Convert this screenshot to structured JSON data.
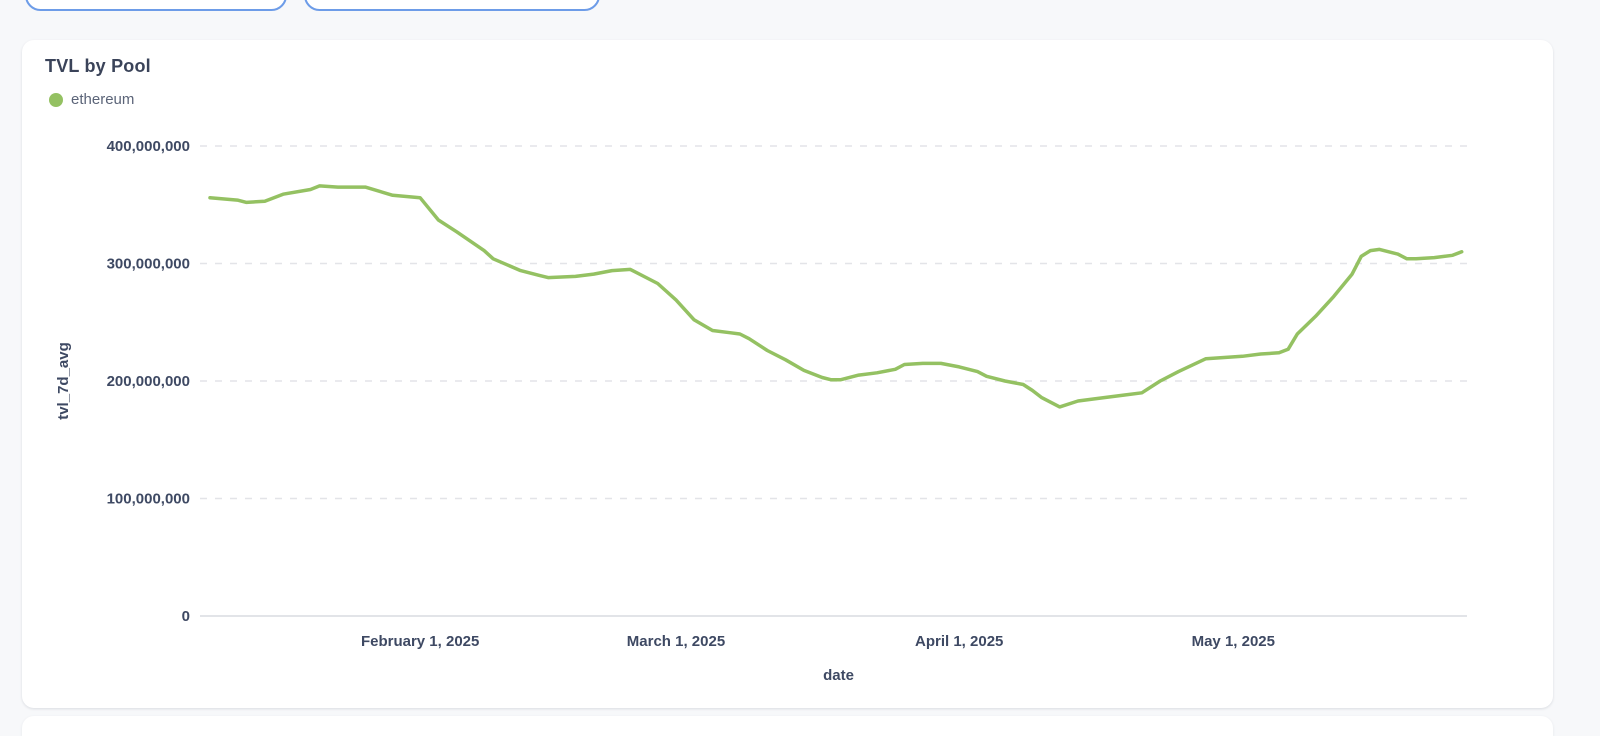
{
  "theme": {
    "background": "#f7f8fa",
    "card_background": "#ffffff",
    "pill_border_blue": "#6d9ce8",
    "title_color": "#3a4359",
    "tick_color": "#3e4963",
    "grid_color": "#e3e4e8",
    "series_green": "#94c162"
  },
  "toolbar": {
    "pills": [
      {
        "label": ""
      },
      {
        "label": ""
      }
    ]
  },
  "card": {
    "title": "TVL by Pool",
    "legend": [
      {
        "label": "ethereum",
        "color": "#94c162"
      }
    ]
  },
  "chart_data": {
    "type": "line",
    "title": "TVL by Pool",
    "xlabel": "date",
    "ylabel": "tvl_7d_avg",
    "grid": "horizontal-dashed",
    "legend_position": "top-left",
    "ylim": [
      0,
      400000000
    ],
    "x_domain": [
      "2025-01-09",
      "2025-05-28"
    ],
    "y_ticks": [
      {
        "value": 400000000,
        "label": "400,000,000"
      },
      {
        "value": 300000000,
        "label": "300,000,000"
      },
      {
        "value": 200000000,
        "label": "200,000,000"
      },
      {
        "value": 100000000,
        "label": "100,000,000"
      },
      {
        "value": 0,
        "label": "0"
      }
    ],
    "x_ticks": [
      {
        "date": "2025-02-01",
        "label": "February 1, 2025"
      },
      {
        "date": "2025-03-01",
        "label": "March 1, 2025"
      },
      {
        "date": "2025-04-01",
        "label": "April 1, 2025"
      },
      {
        "date": "2025-05-01",
        "label": "May 1, 2025"
      }
    ],
    "series": [
      {
        "name": "ethereum",
        "color": "#94c162",
        "points": [
          [
            "2025-01-09",
            356000000
          ],
          [
            "2025-01-12",
            354000000
          ],
          [
            "2025-01-13",
            352000000
          ],
          [
            "2025-01-15",
            353000000
          ],
          [
            "2025-01-17",
            359000000
          ],
          [
            "2025-01-20",
            363000000
          ],
          [
            "2025-01-21",
            366000000
          ],
          [
            "2025-01-23",
            365000000
          ],
          [
            "2025-01-26",
            365000000
          ],
          [
            "2025-01-29",
            358000000
          ],
          [
            "2025-02-01",
            356000000
          ],
          [
            "2025-02-03",
            337000000
          ],
          [
            "2025-02-05",
            327000000
          ],
          [
            "2025-02-08",
            311000000
          ],
          [
            "2025-02-09",
            304000000
          ],
          [
            "2025-02-12",
            294000000
          ],
          [
            "2025-02-14",
            290000000
          ],
          [
            "2025-02-15",
            288000000
          ],
          [
            "2025-02-18",
            289000000
          ],
          [
            "2025-02-20",
            291000000
          ],
          [
            "2025-02-22",
            294000000
          ],
          [
            "2025-02-24",
            295000000
          ],
          [
            "2025-02-27",
            283000000
          ],
          [
            "2025-03-01",
            269000000
          ],
          [
            "2025-03-03",
            252000000
          ],
          [
            "2025-03-05",
            243000000
          ],
          [
            "2025-03-07",
            241000000
          ],
          [
            "2025-03-08",
            240000000
          ],
          [
            "2025-03-09",
            236000000
          ],
          [
            "2025-03-11",
            226000000
          ],
          [
            "2025-03-13",
            218000000
          ],
          [
            "2025-03-15",
            209000000
          ],
          [
            "2025-03-17",
            203000000
          ],
          [
            "2025-03-18",
            201000000
          ],
          [
            "2025-03-19",
            201000000
          ],
          [
            "2025-03-21",
            205000000
          ],
          [
            "2025-03-23",
            207000000
          ],
          [
            "2025-03-25",
            210000000
          ],
          [
            "2025-03-26",
            214000000
          ],
          [
            "2025-03-28",
            215000000
          ],
          [
            "2025-03-30",
            215000000
          ],
          [
            "2025-04-01",
            212000000
          ],
          [
            "2025-04-03",
            208000000
          ],
          [
            "2025-04-04",
            204000000
          ],
          [
            "2025-04-06",
            200000000
          ],
          [
            "2025-04-08",
            197000000
          ],
          [
            "2025-04-09",
            192000000
          ],
          [
            "2025-04-10",
            186000000
          ],
          [
            "2025-04-12",
            178000000
          ],
          [
            "2025-04-14",
            183000000
          ],
          [
            "2025-04-16",
            185000000
          ],
          [
            "2025-04-19",
            188000000
          ],
          [
            "2025-04-21",
            190000000
          ],
          [
            "2025-04-23",
            200000000
          ],
          [
            "2025-04-25",
            208000000
          ],
          [
            "2025-04-28",
            219000000
          ],
          [
            "2025-04-30",
            220000000
          ],
          [
            "2025-05-02",
            221000000
          ],
          [
            "2025-05-04",
            223000000
          ],
          [
            "2025-05-06",
            224000000
          ],
          [
            "2025-05-07",
            227000000
          ],
          [
            "2025-05-08",
            240000000
          ],
          [
            "2025-05-10",
            255000000
          ],
          [
            "2025-05-12",
            272000000
          ],
          [
            "2025-05-14",
            291000000
          ],
          [
            "2025-05-15",
            306000000
          ],
          [
            "2025-05-16",
            311000000
          ],
          [
            "2025-05-17",
            312000000
          ],
          [
            "2025-05-19",
            308000000
          ],
          [
            "2025-05-20",
            304000000
          ],
          [
            "2025-05-21",
            304000000
          ],
          [
            "2025-05-23",
            305000000
          ],
          [
            "2025-05-25",
            307000000
          ],
          [
            "2025-05-26",
            310000000
          ]
        ]
      }
    ]
  }
}
